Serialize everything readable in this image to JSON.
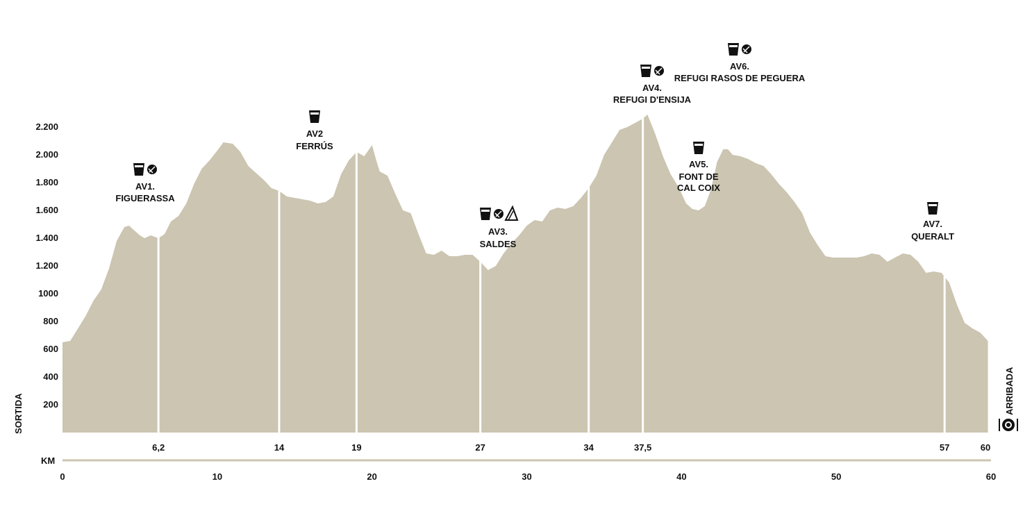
{
  "chart_data": {
    "type": "area",
    "title": "",
    "xlabel": "KM",
    "ylabel": "",
    "xlim": [
      0,
      60
    ],
    "ylim": [
      0,
      2300
    ],
    "x_ticks": [
      0,
      10,
      20,
      30,
      40,
      50,
      60
    ],
    "x_tick_labels": [
      "0",
      "10",
      "20",
      "30",
      "40",
      "50",
      "60"
    ],
    "y_ticks": [
      200,
      400,
      600,
      800,
      1000,
      1200,
      1400,
      1600,
      1800,
      2000,
      2200
    ],
    "y_tick_labels": [
      "200",
      "400",
      "600",
      "800",
      "1000",
      "1.200",
      "1.400",
      "1.600",
      "1.800",
      "2.000",
      "2.200"
    ],
    "grid": false,
    "colors": {
      "fill": "#cbc5b1",
      "stations": "#ffffff",
      "axis": "#cbc5b1",
      "text": "#111111"
    },
    "start_label": "SORTIDA",
    "end_label": "ARRIBADA",
    "end_icon": "finish-meal-icon",
    "series": [
      {
        "x": [
          0,
          0.5,
          1,
          1.5,
          2,
          2.5,
          3,
          3.5,
          4,
          4.3,
          4.6,
          5,
          5.3,
          5.7,
          6.2,
          6.6,
          7,
          7.5,
          8,
          8.5,
          9,
          9.5,
          10,
          10.4,
          11,
          11.5,
          12,
          12.5,
          13,
          13.5,
          14,
          14.5,
          15,
          15.5,
          16,
          16.5,
          17,
          17.5,
          18,
          18.5,
          19,
          19.5,
          20,
          20.3,
          20.5,
          21,
          21.5,
          22,
          22.5,
          23,
          23.5,
          24,
          24.5,
          25,
          25.5,
          26,
          26.5,
          27,
          27.5,
          28,
          28.5,
          29,
          29.5,
          30,
          30.5,
          31,
          31.5,
          32,
          32.5,
          33,
          33.5,
          34,
          34.5,
          35,
          35.5,
          36,
          36.5,
          37,
          37.5,
          37.8,
          38.3,
          38.8,
          39.3,
          39.8,
          40.3,
          40.7,
          41.1,
          41.5,
          41.9,
          42.3,
          42.7,
          43,
          43.3,
          43.8,
          44.3,
          44.8,
          45.3,
          45.8,
          46.3,
          46.8,
          47.3,
          47.8,
          48.3,
          48.8,
          49.3,
          49.8,
          50.3,
          50.8,
          51.3,
          51.8,
          52.3,
          52.8,
          53.3,
          53.8,
          54.3,
          54.8,
          55.3,
          55.8,
          56.3,
          56.8,
          57.3,
          57.8,
          58.3,
          58.8,
          59.3,
          59.8
        ],
        "y": [
          650,
          660,
          750,
          840,
          950,
          1030,
          1180,
          1380,
          1480,
          1490,
          1460,
          1420,
          1400,
          1420,
          1400,
          1430,
          1520,
          1560,
          1650,
          1790,
          1900,
          1960,
          2030,
          2090,
          2080,
          2020,
          1920,
          1870,
          1820,
          1760,
          1740,
          1700,
          1690,
          1680,
          1670,
          1650,
          1660,
          1700,
          1860,
          1960,
          2020,
          1990,
          2070,
          1950,
          1880,
          1850,
          1720,
          1600,
          1580,
          1430,
          1290,
          1280,
          1310,
          1270,
          1270,
          1280,
          1280,
          1230,
          1170,
          1200,
          1290,
          1360,
          1420,
          1490,
          1530,
          1520,
          1600,
          1620,
          1610,
          1630,
          1690,
          1760,
          1850,
          2000,
          2090,
          2180,
          2200,
          2230,
          2260,
          2290,
          2150,
          1990,
          1860,
          1770,
          1650,
          1610,
          1600,
          1630,
          1750,
          1950,
          2040,
          2040,
          2000,
          1990,
          1970,
          1940,
          1920,
          1860,
          1790,
          1730,
          1660,
          1580,
          1440,
          1350,
          1270,
          1260,
          1260,
          1260,
          1260,
          1270,
          1290,
          1280,
          1230,
          1260,
          1290,
          1280,
          1230,
          1150,
          1160,
          1150,
          1080,
          920,
          790,
          750,
          720,
          660
        ]
      }
    ],
    "station_km": [
      6.2,
      14,
      19,
      27,
      34,
      37.5,
      57,
      60
    ],
    "station_km_labels": [
      "6,2",
      "14",
      "19",
      "27",
      "34",
      "37,5",
      "57",
      "60"
    ],
    "aid_stations": [
      {
        "name_lines": [
          "AV1.",
          "FIGUERASSA"
        ],
        "km": 6.2,
        "icons": [
          "drink-icon",
          "fruit-icon"
        ]
      },
      {
        "name_lines": [
          "AV2",
          "FERRÚS"
        ],
        "km": 14,
        "icons": [
          "drink-icon"
        ]
      },
      {
        "name_lines": [
          "AV3.",
          "SALDES"
        ],
        "km": 19,
        "icons": [
          "drink-icon",
          "fruit-icon",
          "sandwich-icon"
        ]
      },
      {
        "name_lines": [
          "AV4.",
          "REFUGI D'ENSIJA"
        ],
        "km": 27,
        "icons": [
          "drink-icon",
          "fruit-icon"
        ]
      },
      {
        "name_lines": [
          "AV5.",
          "FONT DE",
          "CAL COIX"
        ],
        "km": 34,
        "icons": [
          "drink-icon"
        ]
      },
      {
        "name_lines": [
          "AV6.",
          "REFUGI RASOS DE PEGUERA"
        ],
        "km": 37.5,
        "icons": [
          "drink-icon",
          "fruit-icon"
        ]
      },
      {
        "name_lines": [
          "AV7.",
          "QUERALT"
        ],
        "km": 57,
        "icons": [
          "drink-icon"
        ]
      }
    ]
  }
}
